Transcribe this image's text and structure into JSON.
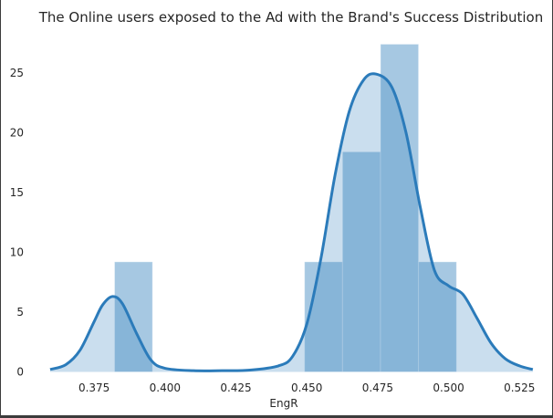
{
  "chart_data": {
    "type": "histogram",
    "title": "The Online users exposed to the Ad with the Brand's Success Distribution",
    "xlabel": "EngR",
    "ylabel": "",
    "xlim": [
      0.355,
      0.532
    ],
    "ylim": [
      -0.5,
      28.5
    ],
    "grid": false,
    "colors": {
      "bar_fill": "#2b7bba",
      "bar_opacity": 0.42,
      "kde_line": "#2b7bba",
      "kde_fill_opacity": 0.25
    },
    "x_ticks": [
      {
        "value": 0.375,
        "label": "0.375"
      },
      {
        "value": 0.4,
        "label": "0.400"
      },
      {
        "value": 0.425,
        "label": "0.425"
      },
      {
        "value": 0.45,
        "label": "0.450"
      },
      {
        "value": 0.475,
        "label": "0.475"
      },
      {
        "value": 0.5,
        "label": "0.500"
      },
      {
        "value": 0.525,
        "label": "0.525"
      }
    ],
    "y_ticks": [
      {
        "value": 0,
        "label": "0"
      },
      {
        "value": 5,
        "label": "5"
      },
      {
        "value": 10,
        "label": "10"
      },
      {
        "value": 15,
        "label": "15"
      },
      {
        "value": 20,
        "label": "20"
      },
      {
        "value": 25,
        "label": "25"
      }
    ],
    "histogram_bins": [
      {
        "x0": 0.3822,
        "x1": 0.3956,
        "height": 9.2
      },
      {
        "x0": 0.4492,
        "x1": 0.4626,
        "height": 9.2
      },
      {
        "x0": 0.4626,
        "x1": 0.476,
        "height": 18.4
      },
      {
        "x0": 0.476,
        "x1": 0.4894,
        "height": 27.4
      },
      {
        "x0": 0.4894,
        "x1": 0.5028,
        "height": 9.2
      }
    ],
    "kde": {
      "x": [
        0.3595,
        0.365,
        0.37,
        0.375,
        0.378,
        0.3815,
        0.385,
        0.39,
        0.395,
        0.4,
        0.41,
        0.42,
        0.43,
        0.44,
        0.445,
        0.45,
        0.455,
        0.46,
        0.465,
        0.47,
        0.4745,
        0.48,
        0.485,
        0.49,
        0.495,
        0.5,
        0.505,
        0.51,
        0.515,
        0.52,
        0.525,
        0.5297
      ],
      "y": [
        0.2,
        0.6,
        1.8,
        4.2,
        5.6,
        6.3,
        5.7,
        3.2,
        1.0,
        0.3,
        0.1,
        0.1,
        0.15,
        0.5,
        1.3,
        4.0,
        9.5,
        16.5,
        21.8,
        24.4,
        24.9,
        23.8,
        20.0,
        13.8,
        8.5,
        7.2,
        6.5,
        4.5,
        2.4,
        1.1,
        0.5,
        0.2
      ]
    }
  }
}
